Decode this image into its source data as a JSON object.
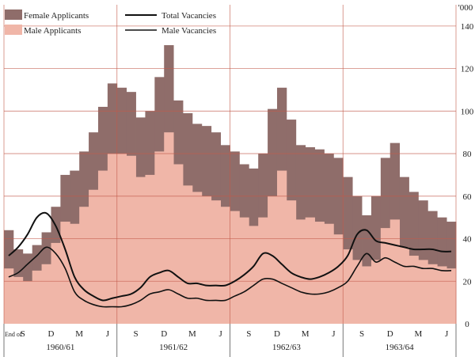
{
  "chart_data": {
    "type": "area",
    "y_unit": "'000",
    "ylim": [
      0,
      150
    ],
    "y_ticks": [
      "0",
      "20",
      "40",
      "60",
      "80",
      "100",
      "120",
      "140"
    ],
    "x_start_label": "End of",
    "month_ticks": [
      {
        "label": "S",
        "x": 2
      },
      {
        "label": "D",
        "x": 5
      },
      {
        "label": "M",
        "x": 8
      },
      {
        "label": "J",
        "x": 11
      },
      {
        "label": "S",
        "x": 14
      },
      {
        "label": "D",
        "x": 17
      },
      {
        "label": "M",
        "x": 20
      },
      {
        "label": "J",
        "x": 23
      },
      {
        "label": "S",
        "x": 26
      },
      {
        "label": "D",
        "x": 29
      },
      {
        "label": "M",
        "x": 32
      },
      {
        "label": "J",
        "x": 35
      },
      {
        "label": "S",
        "x": 38
      },
      {
        "label": "D",
        "x": 41
      },
      {
        "label": "M",
        "x": 44
      },
      {
        "label": "J",
        "x": 47
      }
    ],
    "periods": [
      {
        "label": "1960/61",
        "start": 0,
        "end": 12
      },
      {
        "label": "1961/62",
        "start": 12,
        "end": 24
      },
      {
        "label": "1962/63",
        "start": 24,
        "end": 36
      },
      {
        "label": "1963/64",
        "start": 36,
        "end": 48
      }
    ],
    "legend": {
      "female_applicants": "Female Applicants",
      "male_applicants": "Male Applicants",
      "total_vacancies": "Total Vacancies",
      "male_vacancies": "Male Vacancies"
    },
    "colors": {
      "female": "#8f6d6a",
      "male": "#f0b6a8",
      "baseline_band": "#f3a79a",
      "grid": "#c25a4a",
      "line": "#111111"
    },
    "series": {
      "female_plus_male_applicants": [
        44,
        35,
        33,
        37,
        43,
        55,
        70,
        72,
        81,
        90,
        102,
        113,
        111,
        109,
        97,
        100,
        116,
        131,
        105,
        99,
        94,
        93,
        90,
        84,
        81,
        75,
        73,
        80,
        101,
        111,
        96,
        84,
        83,
        82,
        80,
        78,
        69,
        60,
        51,
        60,
        78,
        85,
        69,
        62,
        58,
        53,
        50,
        48
      ],
      "male_applicants": [
        26,
        22,
        20,
        25,
        28,
        38,
        48,
        47,
        55,
        63,
        72,
        80,
        80,
        79,
        69,
        70,
        81,
        90,
        75,
        65,
        62,
        60,
        58,
        55,
        53,
        50,
        46,
        50,
        60,
        72,
        58,
        49,
        50,
        48,
        47,
        42,
        35,
        30,
        27,
        30,
        45,
        49,
        36,
        32,
        30,
        28,
        27,
        26
      ],
      "total_vacancies": [
        32,
        36,
        42,
        50,
        52,
        46,
        35,
        22,
        16,
        13,
        11,
        12,
        13,
        14,
        17,
        22,
        24,
        25,
        22,
        19,
        19,
        18,
        18,
        18,
        20,
        23,
        27,
        33,
        32,
        28,
        24,
        22,
        21,
        22,
        24,
        27,
        32,
        42,
        44,
        39,
        38,
        37,
        36,
        35,
        35,
        35,
        34,
        34
      ],
      "male_vacancies": [
        22,
        24,
        28,
        32,
        36,
        33,
        26,
        15,
        11,
        9,
        8,
        8,
        8,
        9,
        11,
        14,
        15,
        16,
        14,
        12,
        12,
        11,
        11,
        11,
        13,
        15,
        18,
        21,
        21,
        19,
        17,
        15,
        14,
        14,
        15,
        17,
        20,
        27,
        33,
        29,
        31,
        29,
        27,
        27,
        26,
        26,
        25,
        25
      ]
    }
  }
}
